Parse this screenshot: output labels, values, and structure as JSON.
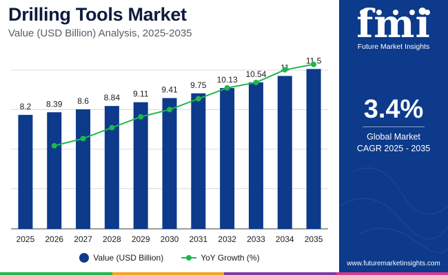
{
  "header": {
    "title": "Drilling Tools Market",
    "subtitle": "Value (USD Billion) Analysis, 2025-2035"
  },
  "chart_data": {
    "type": "bar",
    "categories": [
      "2025",
      "2026",
      "2027",
      "2028",
      "2029",
      "2030",
      "2031",
      "2032",
      "2033",
      "2034",
      "2035"
    ],
    "series": [
      {
        "name": "Value (USD Billion)",
        "type": "bar",
        "values": [
          8.2,
          8.39,
          8.6,
          8.84,
          9.11,
          9.41,
          9.75,
          10.13,
          10.54,
          11,
          11.5
        ],
        "labels": [
          "8.2",
          "8.39",
          "8.6",
          "8.84",
          "9.11",
          "9.41",
          "9.75",
          "10.13",
          "10.54",
          "11",
          "11.5"
        ],
        "color": "#0d3a8a"
      },
      {
        "name": "YoY Growth (%)",
        "type": "line",
        "values": [
          null,
          2.3,
          2.5,
          2.8,
          3.1,
          3.3,
          3.6,
          3.9,
          4.05,
          4.4,
          4.55
        ],
        "color": "#1db84a"
      }
    ],
    "ylim": [
      0,
      13
    ],
    "growth_ylim": [
      0,
      5
    ],
    "grid": true,
    "legend_position": "bottom-center"
  },
  "legend": {
    "bar_label": "Value (USD Billion)",
    "line_label": "YoY Growth (%)"
  },
  "panel": {
    "logo_text": "fmi",
    "logo_subtitle": "Future Market Insights",
    "cagr_value": "3.4%",
    "cagr_label_line1": "Global Market",
    "cagr_label_line2": "CAGR 2025 - 2035",
    "website": "www.futuremarketinsights.com"
  },
  "colors": {
    "bar": "#0d3a8a",
    "line": "#1db84a",
    "panel_bg": "#0d3a8a",
    "title": "#0d1b3e",
    "footer_stripes": [
      "#1db84a",
      "#f5a623",
      "#7b3fa0",
      "#d63a8a"
    ]
  }
}
